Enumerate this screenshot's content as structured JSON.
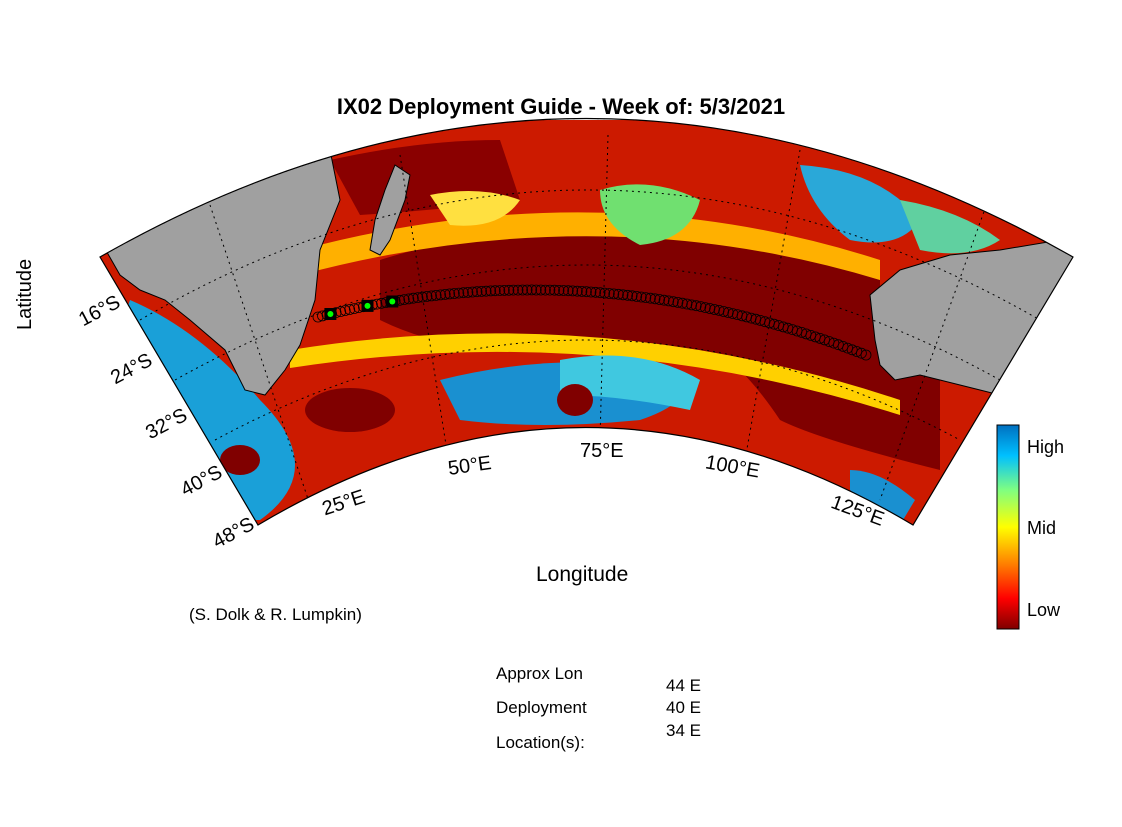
{
  "title": "IX02 Deployment Guide - Week of: 5/3/2021",
  "xlabel": "Longitude",
  "ylabel": "Latitude",
  "credit": "(S. Dolk & R. Lumpkin)",
  "lat_ticks": [
    "16°S",
    "24°S",
    "32°S",
    "40°S",
    "48°S"
  ],
  "lon_ticks": [
    "25°E",
    "50°E",
    "75°E",
    "100°E",
    "125°E"
  ],
  "colorbar": {
    "high": "High",
    "mid": "Mid",
    "low": "Low",
    "colors": [
      "#800000",
      "#ff0000",
      "#ff8000",
      "#ffff00",
      "#80ff80",
      "#00c0ff",
      "#0070c0"
    ]
  },
  "info": {
    "label_line1": "Approx Lon",
    "label_line2": "Deployment",
    "label_line3": "Location(s):",
    "values": [
      "44 E",
      "40 E",
      "34 E"
    ]
  },
  "land_color": "#a0a0a0",
  "deploy_marker_color": "#00ff00",
  "deployment_lons": [
    44,
    40,
    34
  ]
}
